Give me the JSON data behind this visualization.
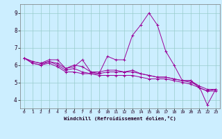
{
  "xlabel": "Windchill (Refroidissement éolien,°C)",
  "ylabel": "",
  "bg_color": "#cceeff",
  "line_color": "#990099",
  "xlim": [
    -0.5,
    23.5
  ],
  "ylim": [
    3.5,
    9.5
  ],
  "xticks": [
    0,
    1,
    2,
    3,
    4,
    5,
    6,
    7,
    8,
    9,
    10,
    11,
    12,
    13,
    14,
    15,
    16,
    17,
    18,
    19,
    20,
    21,
    22,
    23
  ],
  "yticks": [
    4,
    5,
    6,
    7,
    8,
    9
  ],
  "series": [
    [
      6.4,
      6.2,
      6.1,
      6.3,
      6.3,
      5.8,
      5.9,
      6.3,
      5.6,
      5.5,
      6.5,
      6.3,
      6.3,
      7.7,
      8.3,
      9.0,
      8.3,
      6.8,
      6.0,
      5.1,
      5.1,
      4.7,
      4.5,
      4.6
    ],
    [
      6.4,
      6.2,
      6.1,
      6.2,
      6.0,
      5.7,
      5.8,
      5.6,
      5.5,
      5.5,
      5.6,
      5.6,
      5.6,
      5.7,
      5.5,
      5.4,
      5.3,
      5.3,
      5.2,
      5.1,
      5.0,
      4.8,
      4.6,
      4.6
    ],
    [
      6.4,
      6.1,
      6.0,
      6.1,
      5.9,
      5.6,
      5.6,
      5.5,
      5.5,
      5.4,
      5.4,
      5.4,
      5.4,
      5.4,
      5.3,
      5.2,
      5.2,
      5.2,
      5.1,
      5.0,
      4.9,
      4.7,
      4.5,
      4.5
    ],
    [
      6.4,
      6.1,
      6.0,
      6.2,
      6.1,
      5.8,
      6.0,
      5.9,
      5.6,
      5.6,
      5.7,
      5.7,
      5.6,
      5.6,
      5.5,
      5.4,
      5.3,
      5.3,
      5.2,
      5.1,
      5.1,
      4.8,
      3.7,
      4.6
    ]
  ]
}
